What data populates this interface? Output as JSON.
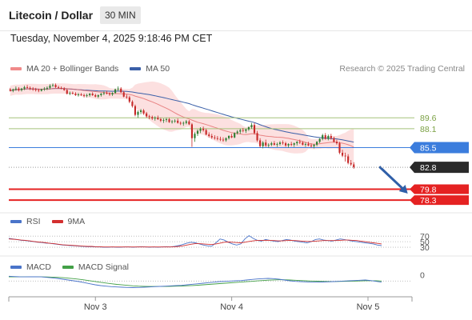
{
  "header": {
    "title": "Litecoin / Dollar",
    "timeframe": "30 MIN",
    "timestamp": "Tuesday, November 4, 2025 9:18:46 PM CET"
  },
  "legend": {
    "items": [
      {
        "label": "MA 20 + Bollinger Bands",
        "color": "#f08a8a"
      },
      {
        "label": "MA 50",
        "color": "#3a5fa8"
      }
    ],
    "credit": "Research © 2025 Trading Central"
  },
  "colors": {
    "up": "#2e7d32",
    "down": "#c62828",
    "ma20": "#e36b6b",
    "bb_fill": "#fbd6d6",
    "ma50": "#3a5fa8",
    "resistance": "#a5c27a",
    "pivot": "#3b7ddd",
    "support": "#e52222",
    "last": "#2a2a2a",
    "rsi": "#4a74c9",
    "rsi_ma": "#d32f2f",
    "macd": "#4a74c9",
    "macd_signal": "#43a047"
  },
  "chart_data": {
    "type": "candlestick",
    "price_range": [
      77,
      95
    ],
    "x_labels": [
      {
        "label": "Nov 3",
        "index": 30
      },
      {
        "label": "Nov 4",
        "index": 78
      },
      {
        "label": "Nov 5",
        "index": 126
      }
    ],
    "last_price": 82.8,
    "levels": [
      {
        "value": 89.6,
        "label": "89.6",
        "kind": "resistance"
      },
      {
        "value": 88.1,
        "label": "88.1",
        "kind": "resistance"
      },
      {
        "value": 85.5,
        "label": "85.5",
        "kind": "pivot"
      },
      {
        "value": 79.8,
        "label": "79.8",
        "kind": "support"
      },
      {
        "value": 78.3,
        "label": "78.3",
        "kind": "support"
      }
    ],
    "forecast": {
      "from_index": 130,
      "from_price": 82.9,
      "to_index": 140,
      "to_price": 79.2
    },
    "candles": [
      [
        93.5,
        93.7,
        93.2,
        93.3
      ],
      [
        93.3,
        93.6,
        93.1,
        93.5
      ],
      [
        93.5,
        93.9,
        93.3,
        93.6
      ],
      [
        93.6,
        93.8,
        93.2,
        93.4
      ],
      [
        93.4,
        93.7,
        93.2,
        93.6
      ],
      [
        93.6,
        94.0,
        93.4,
        93.8
      ],
      [
        93.8,
        94.1,
        93.6,
        93.7
      ],
      [
        93.7,
        93.9,
        93.4,
        93.6
      ],
      [
        93.6,
        93.8,
        93.3,
        93.5
      ],
      [
        93.5,
        93.7,
        93.2,
        93.4
      ],
      [
        93.4,
        93.6,
        93.1,
        93.3
      ],
      [
        93.3,
        93.6,
        93.2,
        93.5
      ],
      [
        93.5,
        93.8,
        93.3,
        93.6
      ],
      [
        93.6,
        93.9,
        93.4,
        93.7
      ],
      [
        93.7,
        94.2,
        93.5,
        94.0
      ],
      [
        94.0,
        94.3,
        93.8,
        94.1
      ],
      [
        94.1,
        94.3,
        93.7,
        93.8
      ],
      [
        93.8,
        94.0,
        93.6,
        93.7
      ],
      [
        93.7,
        93.9,
        93.5,
        93.6
      ],
      [
        93.6,
        93.8,
        93.3,
        93.4
      ],
      [
        93.4,
        93.6,
        92.8,
        92.9
      ],
      [
        92.9,
        93.2,
        92.7,
        93.0
      ],
      [
        93.0,
        93.2,
        92.8,
        92.9
      ],
      [
        92.9,
        93.1,
        92.6,
        92.7
      ],
      [
        92.7,
        93.0,
        92.5,
        92.8
      ],
      [
        92.8,
        93.0,
        92.6,
        92.7
      ],
      [
        92.7,
        92.9,
        92.4,
        92.6
      ],
      [
        92.6,
        92.9,
        92.4,
        92.7
      ],
      [
        92.7,
        93.0,
        92.5,
        92.9
      ],
      [
        92.9,
        93.1,
        92.6,
        92.7
      ],
      [
        92.7,
        92.9,
        92.4,
        92.5
      ],
      [
        92.5,
        92.8,
        92.3,
        92.7
      ],
      [
        92.7,
        93.0,
        92.5,
        92.9
      ],
      [
        92.9,
        93.2,
        92.7,
        93.0
      ],
      [
        93.0,
        93.3,
        92.8,
        92.9
      ],
      [
        92.9,
        93.1,
        92.6,
        92.8
      ],
      [
        92.8,
        93.1,
        92.6,
        93.0
      ],
      [
        93.0,
        93.6,
        92.9,
        93.5
      ],
      [
        93.5,
        93.9,
        93.3,
        93.6
      ],
      [
        93.6,
        93.8,
        93.0,
        93.1
      ],
      [
        93.1,
        93.3,
        92.4,
        92.5
      ],
      [
        92.5,
        92.8,
        92.2,
        92.4
      ],
      [
        92.4,
        92.6,
        91.6,
        91.8
      ],
      [
        91.8,
        92.0,
        91.0,
        91.2
      ],
      [
        91.2,
        91.4,
        89.8,
        90.0
      ],
      [
        90.0,
        90.6,
        89.6,
        90.4
      ],
      [
        90.4,
        90.8,
        90.1,
        90.6
      ],
      [
        90.6,
        90.8,
        90.0,
        90.2
      ],
      [
        90.2,
        90.4,
        89.6,
        89.8
      ],
      [
        89.8,
        90.0,
        89.4,
        89.7
      ],
      [
        89.7,
        89.9,
        89.3,
        89.5
      ],
      [
        89.5,
        89.8,
        89.2,
        89.6
      ],
      [
        89.6,
        89.9,
        89.3,
        89.4
      ],
      [
        89.4,
        89.6,
        89.0,
        89.2
      ],
      [
        89.2,
        89.5,
        88.9,
        89.3
      ],
      [
        89.3,
        89.6,
        89.0,
        89.4
      ],
      [
        89.4,
        89.6,
        88.9,
        89.0
      ],
      [
        89.0,
        89.3,
        88.8,
        89.1
      ],
      [
        89.1,
        89.4,
        88.9,
        89.2
      ],
      [
        89.2,
        89.5,
        88.8,
        88.9
      ],
      [
        88.9,
        89.1,
        88.6,
        88.8
      ],
      [
        88.8,
        89.1,
        88.5,
        88.9
      ],
      [
        88.9,
        89.3,
        88.7,
        89.1
      ],
      [
        89.1,
        89.3,
        88.6,
        88.7
      ],
      [
        88.7,
        88.9,
        85.6,
        86.8
      ],
      [
        86.8,
        87.6,
        86.3,
        87.4
      ],
      [
        87.4,
        88.0,
        87.1,
        87.8
      ],
      [
        87.8,
        88.3,
        87.5,
        88.1
      ],
      [
        88.1,
        88.4,
        87.7,
        87.9
      ],
      [
        87.9,
        88.1,
        87.2,
        87.3
      ],
      [
        87.3,
        87.6,
        86.9,
        87.1
      ],
      [
        87.1,
        87.4,
        86.7,
        86.9
      ],
      [
        86.9,
        87.2,
        86.6,
        86.8
      ],
      [
        86.8,
        87.1,
        86.5,
        86.7
      ],
      [
        86.7,
        87.0,
        86.4,
        86.6
      ],
      [
        86.6,
        86.9,
        86.3,
        86.5
      ],
      [
        86.5,
        86.9,
        86.3,
        86.8
      ],
      [
        86.8,
        87.2,
        86.6,
        87.1
      ],
      [
        87.1,
        87.4,
        86.8,
        86.9
      ],
      [
        86.9,
        87.6,
        86.8,
        87.5
      ],
      [
        87.5,
        87.9,
        87.3,
        87.7
      ],
      [
        87.7,
        88.1,
        87.4,
        87.9
      ],
      [
        87.9,
        88.2,
        87.6,
        87.8
      ],
      [
        87.8,
        88.1,
        87.5,
        88.0
      ],
      [
        88.0,
        88.4,
        87.8,
        88.3
      ],
      [
        88.3,
        88.9,
        88.1,
        88.6
      ],
      [
        88.6,
        88.9,
        87.3,
        87.5
      ],
      [
        87.5,
        87.8,
        86.3,
        86.5
      ],
      [
        86.5,
        86.8,
        85.5,
        85.7
      ],
      [
        85.7,
        86.4,
        85.4,
        86.2
      ],
      [
        86.2,
        86.6,
        85.6,
        85.8
      ],
      [
        85.8,
        86.1,
        85.5,
        85.9
      ],
      [
        85.9,
        86.3,
        85.7,
        86.1
      ],
      [
        86.1,
        86.4,
        85.8,
        85.9
      ],
      [
        85.9,
        86.2,
        85.6,
        86.0
      ],
      [
        86.0,
        86.4,
        85.8,
        86.2
      ],
      [
        86.2,
        86.5,
        85.9,
        86.1
      ],
      [
        86.1,
        86.3,
        85.6,
        85.8
      ],
      [
        85.8,
        86.1,
        85.5,
        86.0
      ],
      [
        86.0,
        86.3,
        85.7,
        85.9
      ],
      [
        85.9,
        86.2,
        85.6,
        86.1
      ],
      [
        86.1,
        86.4,
        85.8,
        86.3
      ],
      [
        86.3,
        86.6,
        86.0,
        86.2
      ],
      [
        86.2,
        86.4,
        85.8,
        85.9
      ],
      [
        85.9,
        86.2,
        85.6,
        86.0
      ],
      [
        86.0,
        86.3,
        85.7,
        85.8
      ],
      [
        85.8,
        86.1,
        85.5,
        85.7
      ],
      [
        85.7,
        86.0,
        85.4,
        85.9
      ],
      [
        85.9,
        86.4,
        85.7,
        86.3
      ],
      [
        86.3,
        86.8,
        86.1,
        86.7
      ],
      [
        86.7,
        87.4,
        86.5,
        87.2
      ],
      [
        87.2,
        87.5,
        86.6,
        86.7
      ],
      [
        86.7,
        87.3,
        86.5,
        87.1
      ],
      [
        87.1,
        87.4,
        86.6,
        86.8
      ],
      [
        86.8,
        87.0,
        86.2,
        86.3
      ],
      [
        86.3,
        86.6,
        85.9,
        86.1
      ],
      [
        86.1,
        86.3,
        84.6,
        84.8
      ],
      [
        84.8,
        85.2,
        84.2,
        84.4
      ],
      [
        84.4,
        84.8,
        83.6,
        84.3
      ],
      [
        84.3,
        84.6,
        83.2,
        83.4
      ],
      [
        83.4,
        83.8,
        83.0,
        83.2
      ],
      [
        83.2,
        83.5,
        82.6,
        82.8
      ]
    ]
  },
  "rsi": {
    "title": "RSI",
    "ma_label": "9MA",
    "levels": [
      {
        "value": 70,
        "label": "70"
      },
      {
        "value": 50,
        "label": "50"
      },
      {
        "value": 30,
        "label": "30"
      }
    ],
    "range": [
      10,
      85
    ],
    "values": [
      62,
      60,
      58,
      55,
      54,
      52,
      50,
      48,
      47,
      45,
      44,
      42,
      40,
      38,
      37,
      36,
      35,
      34,
      33,
      32,
      32,
      31,
      31,
      30,
      30,
      31,
      30,
      30,
      31,
      31,
      30,
      31,
      32,
      31,
      30,
      31,
      30,
      31,
      32,
      31,
      33,
      36,
      40,
      45,
      48,
      46,
      42,
      38,
      35,
      34,
      46,
      60,
      56,
      48,
      42,
      38,
      42,
      60,
      72,
      62,
      55,
      52,
      58,
      55,
      52,
      50,
      54,
      58,
      56,
      52,
      50,
      48,
      46,
      50,
      58,
      60,
      56,
      54,
      52,
      56,
      60,
      58,
      55,
      52,
      50,
      48,
      46,
      44,
      42,
      38,
      36
    ],
    "ma_values": [
      60,
      59,
      58,
      56,
      55,
      53,
      51,
      49,
      48,
      46,
      44,
      43,
      41,
      39,
      38,
      37,
      36,
      35,
      34,
      33,
      33,
      32,
      32,
      31,
      31,
      31,
      31,
      31,
      31,
      31,
      31,
      31,
      31,
      31,
      31,
      31,
      31,
      31,
      31,
      31,
      32,
      33,
      35,
      38,
      41,
      43,
      43,
      42,
      41,
      40,
      42,
      45,
      48,
      49,
      48,
      47,
      46,
      48,
      51,
      53,
      55,
      55,
      55,
      55,
      54,
      53,
      53,
      54,
      55,
      54,
      53,
      52,
      51,
      51,
      52,
      53,
      54,
      54,
      54,
      54,
      55,
      56,
      56,
      55,
      54,
      52,
      50,
      48,
      46,
      44,
      42
    ]
  },
  "macd": {
    "title": "MACD",
    "signal_label": "MACD Signal",
    "zero_label": "0",
    "range": [
      -2.2,
      1.4
    ],
    "values": [
      0.9,
      0.85,
      0.8,
      0.78,
      0.8,
      0.82,
      0.78,
      0.7,
      0.6,
      0.5,
      0.35,
      0.2,
      0.05,
      -0.1,
      -0.3,
      -0.5,
      -0.7,
      -0.85,
      -0.95,
      -1.05,
      -1.1,
      -1.15,
      -1.2,
      -1.22,
      -1.2,
      -1.15,
      -1.1,
      -1.05,
      -1.0,
      -0.95,
      -0.9,
      -0.85,
      -0.8,
      -0.7,
      -0.6,
      -0.5,
      -0.4,
      -0.3,
      -0.2,
      -0.1,
      -0.05,
      0.0,
      0.05,
      0.1,
      0.2,
      0.3,
      0.4,
      0.45,
      0.5,
      0.45,
      0.35,
      0.2,
      0.05,
      -0.05,
      -0.1,
      -0.15,
      -0.2,
      -0.2,
      -0.18,
      -0.15,
      -0.1,
      -0.05,
      0.0,
      0.05,
      0.1,
      0.15,
      0.2,
      0.1,
      -0.05,
      -0.2
    ],
    "signal_values": [
      0.8,
      0.8,
      0.79,
      0.78,
      0.78,
      0.79,
      0.79,
      0.77,
      0.74,
      0.69,
      0.63,
      0.55,
      0.45,
      0.34,
      0.21,
      0.07,
      -0.08,
      -0.23,
      -0.37,
      -0.5,
      -0.62,
      -0.72,
      -0.81,
      -0.89,
      -0.95,
      -0.99,
      -1.01,
      -1.02,
      -1.02,
      -1.0,
      -0.98,
      -0.95,
      -0.92,
      -0.88,
      -0.83,
      -0.77,
      -0.7,
      -0.63,
      -0.55,
      -0.47,
      -0.4,
      -0.33,
      -0.26,
      -0.19,
      -0.12,
      -0.05,
      0.03,
      0.1,
      0.17,
      0.22,
      0.24,
      0.24,
      0.2,
      0.15,
      0.1,
      0.05,
      0.0,
      -0.03,
      -0.06,
      -0.07,
      -0.08,
      -0.07,
      -0.06,
      -0.04,
      -0.01,
      0.02,
      0.06,
      0.07,
      0.05,
      0.0
    ]
  }
}
